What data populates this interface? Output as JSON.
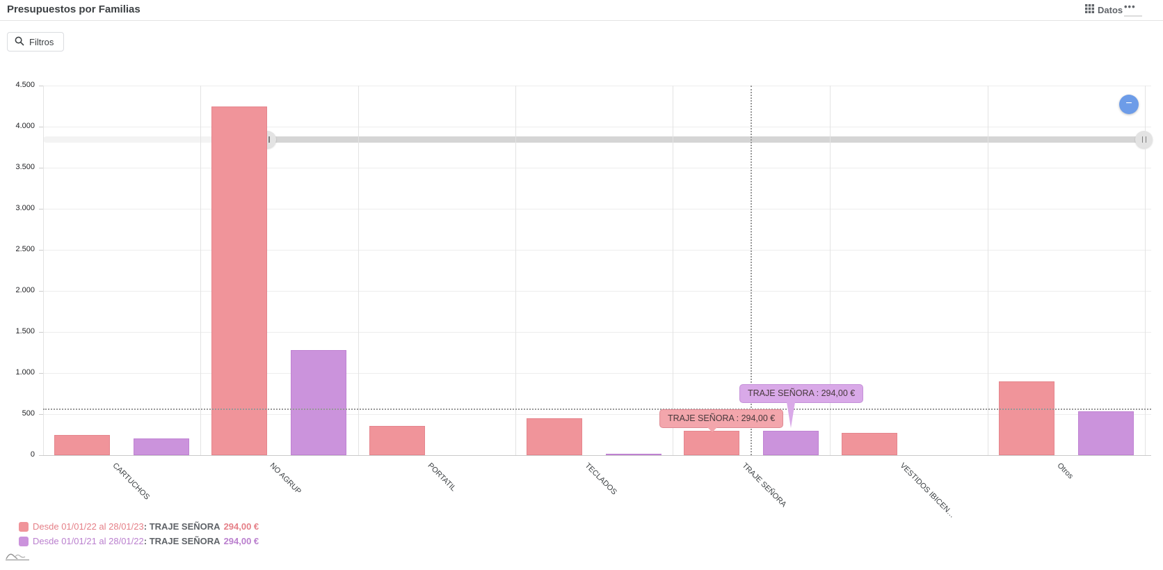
{
  "header": {
    "title": "Presupuestos por Familias",
    "datos_label": "Datos",
    "more_label": "•••"
  },
  "toolbar": {
    "filtros_label": "Filtros"
  },
  "zoom_button": {
    "label": "−"
  },
  "chart_data": {
    "type": "bar",
    "title": "Presupuestos por Familias",
    "categories": [
      "CARTUCHOS",
      "NO AGRUP",
      "PORTATIL",
      "TECLADOS",
      "TRAJE SEÑORA",
      "VESTIDOS IBICEN…",
      "Otros"
    ],
    "series": [
      {
        "name": "Desde 01/01/22 al 28/01/23",
        "color": "#f0949a",
        "border": "#e5858d",
        "values": [
          245,
          4250,
          355,
          450,
          294,
          270,
          900
        ]
      },
      {
        "name": "Desde 01/01/21 al 28/01/22",
        "color": "#cb93dc",
        "border": "#bf82d2",
        "values": [
          200,
          1280,
          0,
          15,
          294,
          0,
          535
        ]
      }
    ],
    "ylim": [
      0,
      4500
    ],
    "ytick_step": 500,
    "ytick_labels": [
      "0",
      "500",
      "1.000",
      "1.500",
      "2.000",
      "2.500",
      "3.000",
      "3.500",
      "4.000",
      "4.500"
    ],
    "grid": true,
    "legend_position": "bottom-left",
    "crosshair": {
      "category": "TRAJE SEÑORA",
      "y_value": 560
    },
    "tooltips": [
      {
        "series": 0,
        "text": "TRAJE SEÑORA : 294,00 €"
      },
      {
        "series": 1,
        "text": "TRAJE SEÑORA : 294,00 €"
      }
    ]
  },
  "legend": {
    "rows": [
      {
        "range": "Desde 01/01/22 al 28/01/23",
        "colon": ": ",
        "item": "TRAJE SEÑORA",
        "value": "294,00 €",
        "color": "#f0949a",
        "text_color": "#e57f87"
      },
      {
        "range": "Desde 01/01/21 al 28/01/22",
        "colon": ": ",
        "item": "TRAJE SEÑORA",
        "value": "294,00 €",
        "color": "#cb93dc",
        "text_color": "#ba7fce"
      }
    ]
  }
}
